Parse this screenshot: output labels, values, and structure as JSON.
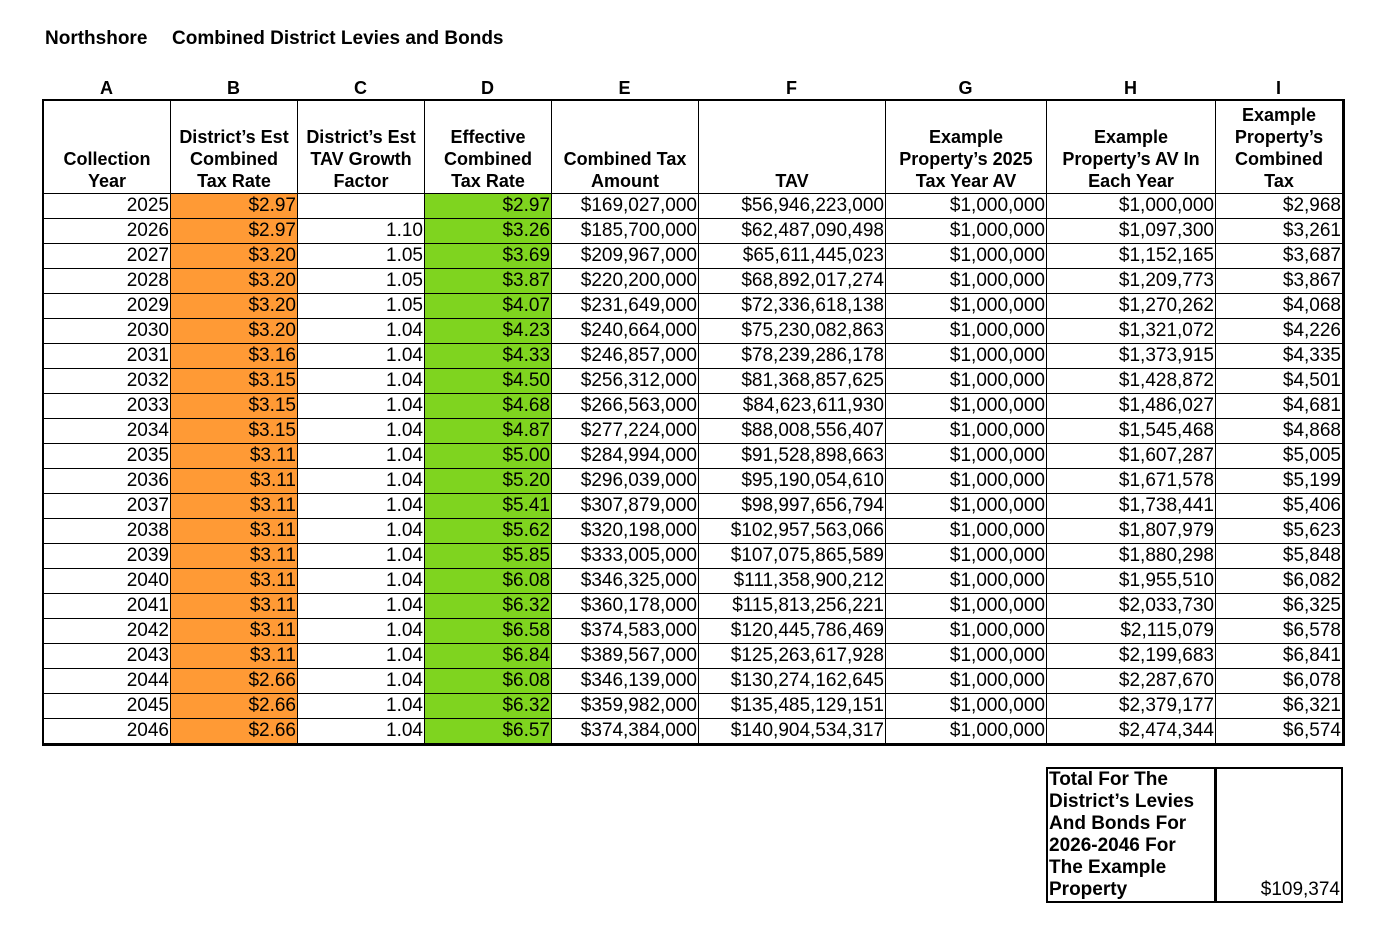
{
  "header": {
    "district": "Northshore",
    "title": "Combined District Levies and Bonds"
  },
  "table": {
    "column_letters": [
      "A",
      "B",
      "C",
      "D",
      "E",
      "F",
      "G",
      "H",
      "I"
    ],
    "headers": [
      [
        "Collection",
        "Year"
      ],
      [
        "District’s Est",
        "Combined",
        "Tax Rate"
      ],
      [
        "District’s Est",
        "TAV Growth",
        "Factor"
      ],
      [
        "Effective",
        "Combined",
        "Tax Rate"
      ],
      [
        "Combined Tax",
        "Amount"
      ],
      [
        "TAV"
      ],
      [
        "Example",
        "Property’s 2025",
        "Tax Year  AV"
      ],
      [
        "Example",
        "Property’s AV In",
        "Each Year"
      ],
      [
        "Example",
        "Property’s",
        "Combined",
        "Tax"
      ]
    ],
    "rows": [
      [
        "2025",
        "$2.97",
        null,
        "$2.97",
        "$169,027,000",
        "$56,946,223,000",
        "$1,000,000",
        "$1,000,000",
        "$2,968"
      ],
      [
        "2026",
        "$2.97",
        "1.10",
        "$3.26",
        "$185,700,000",
        "$62,487,090,498",
        "$1,000,000",
        "$1,097,300",
        "$3,261"
      ],
      [
        "2027",
        "$3.20",
        "1.05",
        "$3.69",
        "$209,967,000",
        "$65,611,445,023",
        "$1,000,000",
        "$1,152,165",
        "$3,687"
      ],
      [
        "2028",
        "$3.20",
        "1.05",
        "$3.87",
        "$220,200,000",
        "$68,892,017,274",
        "$1,000,000",
        "$1,209,773",
        "$3,867"
      ],
      [
        "2029",
        "$3.20",
        "1.05",
        "$4.07",
        "$231,649,000",
        "$72,336,618,138",
        "$1,000,000",
        "$1,270,262",
        "$4,068"
      ],
      [
        "2030",
        "$3.20",
        "1.04",
        "$4.23",
        "$240,664,000",
        "$75,230,082,863",
        "$1,000,000",
        "$1,321,072",
        "$4,226"
      ],
      [
        "2031",
        "$3.16",
        "1.04",
        "$4.33",
        "$246,857,000",
        "$78,239,286,178",
        "$1,000,000",
        "$1,373,915",
        "$4,335"
      ],
      [
        "2032",
        "$3.15",
        "1.04",
        "$4.50",
        "$256,312,000",
        "$81,368,857,625",
        "$1,000,000",
        "$1,428,872",
        "$4,501"
      ],
      [
        "2033",
        "$3.15",
        "1.04",
        "$4.68",
        "$266,563,000",
        "$84,623,611,930",
        "$1,000,000",
        "$1,486,027",
        "$4,681"
      ],
      [
        "2034",
        "$3.15",
        "1.04",
        "$4.87",
        "$277,224,000",
        "$88,008,556,407",
        "$1,000,000",
        "$1,545,468",
        "$4,868"
      ],
      [
        "2035",
        "$3.11",
        "1.04",
        "$5.00",
        "$284,994,000",
        "$91,528,898,663",
        "$1,000,000",
        "$1,607,287",
        "$5,005"
      ],
      [
        "2036",
        "$3.11",
        "1.04",
        "$5.20",
        "$296,039,000",
        "$95,190,054,610",
        "$1,000,000",
        "$1,671,578",
        "$5,199"
      ],
      [
        "2037",
        "$3.11",
        "1.04",
        "$5.41",
        "$307,879,000",
        "$98,997,656,794",
        "$1,000,000",
        "$1,738,441",
        "$5,406"
      ],
      [
        "2038",
        "$3.11",
        "1.04",
        "$5.62",
        "$320,198,000",
        "$102,957,563,066",
        "$1,000,000",
        "$1,807,979",
        "$5,623"
      ],
      [
        "2039",
        "$3.11",
        "1.04",
        "$5.85",
        "$333,005,000",
        "$107,075,865,589",
        "$1,000,000",
        "$1,880,298",
        "$5,848"
      ],
      [
        "2040",
        "$3.11",
        "1.04",
        "$6.08",
        "$346,325,000",
        "$111,358,900,212",
        "$1,000,000",
        "$1,955,510",
        "$6,082"
      ],
      [
        "2041",
        "$3.11",
        "1.04",
        "$6.32",
        "$360,178,000",
        "$115,813,256,221",
        "$1,000,000",
        "$2,033,730",
        "$6,325"
      ],
      [
        "2042",
        "$3.11",
        "1.04",
        "$6.58",
        "$374,583,000",
        "$120,445,786,469",
        "$1,000,000",
        "$2,115,079",
        "$6,578"
      ],
      [
        "2043",
        "$3.11",
        "1.04",
        "$6.84",
        "$389,567,000",
        "$125,263,617,928",
        "$1,000,000",
        "$2,199,683",
        "$6,841"
      ],
      [
        "2044",
        "$2.66",
        "1.04",
        "$6.08",
        "$346,139,000",
        "$130,274,162,645",
        "$1,000,000",
        "$2,287,670",
        "$6,078"
      ],
      [
        "2045",
        "$2.66",
        "1.04",
        "$6.32",
        "$359,982,000",
        "$135,485,129,151",
        "$1,000,000",
        "$2,379,177",
        "$6,321"
      ],
      [
        "2046",
        "$2.66",
        "1.04",
        "$6.57",
        "$374,384,000",
        "$140,904,534,317",
        "$1,000,000",
        "$2,474,344",
        "$6,574"
      ]
    ]
  },
  "total": {
    "label": [
      "Total For The",
      "District’s Levies",
      "And Bonds For",
      "2026-2046 For",
      "The Example",
      "Property"
    ],
    "value": "$109,374"
  }
}
